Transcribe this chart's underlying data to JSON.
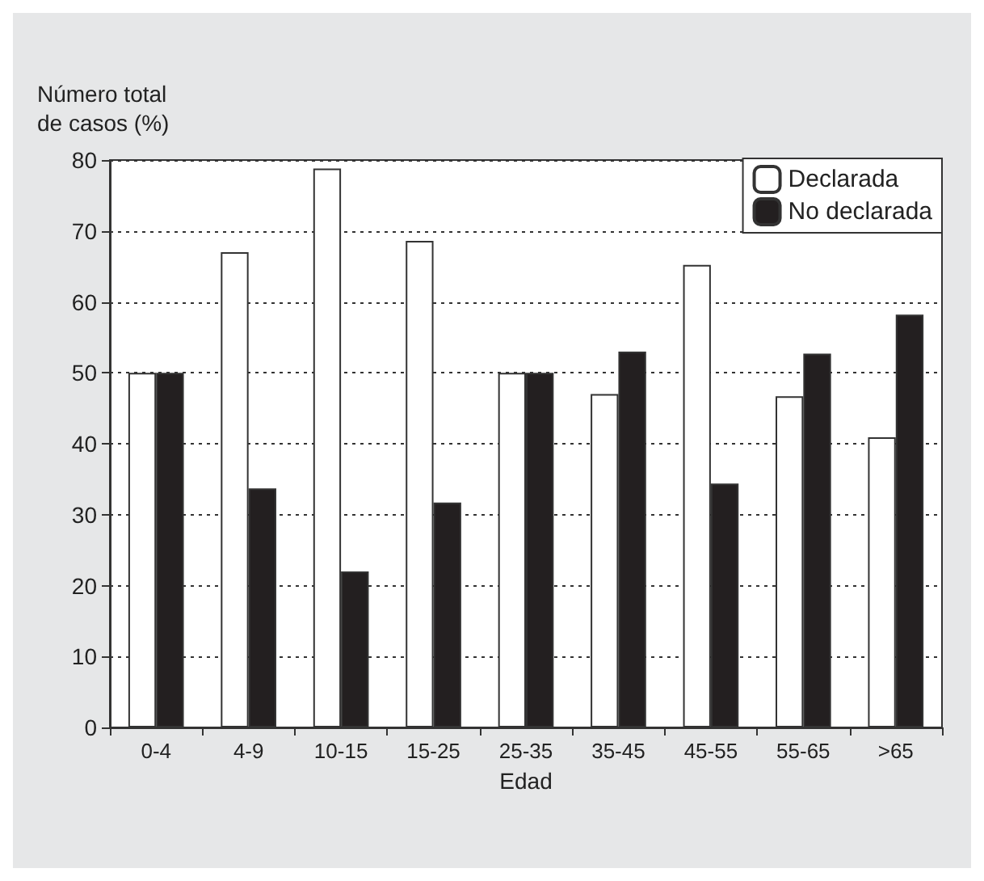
{
  "chart_data": {
    "type": "bar",
    "xlabel": "Edad",
    "ylabel": "Número total\nde casos (%)",
    "categories": [
      "0-4",
      "4-9",
      "10-15",
      "15-25",
      "25-35",
      "35-45",
      "45-55",
      "55-65",
      ">65"
    ],
    "series": [
      {
        "name": "Declarada",
        "color": "#ffffff",
        "values": [
          50,
          67,
          78.8,
          68.6,
          50,
          47,
          65.2,
          46.7,
          40.9
        ]
      },
      {
        "name": "No declarada",
        "color": "#231f20",
        "values": [
          50,
          33.7,
          22,
          31.7,
          50,
          53,
          34.4,
          52.7,
          58.2
        ]
      }
    ],
    "ylim": [
      0,
      80
    ],
    "yticks": [
      0,
      10,
      20,
      30,
      40,
      50,
      60,
      70,
      80
    ],
    "grid": "y",
    "line_style": "dotted",
    "legend": "top right"
  }
}
